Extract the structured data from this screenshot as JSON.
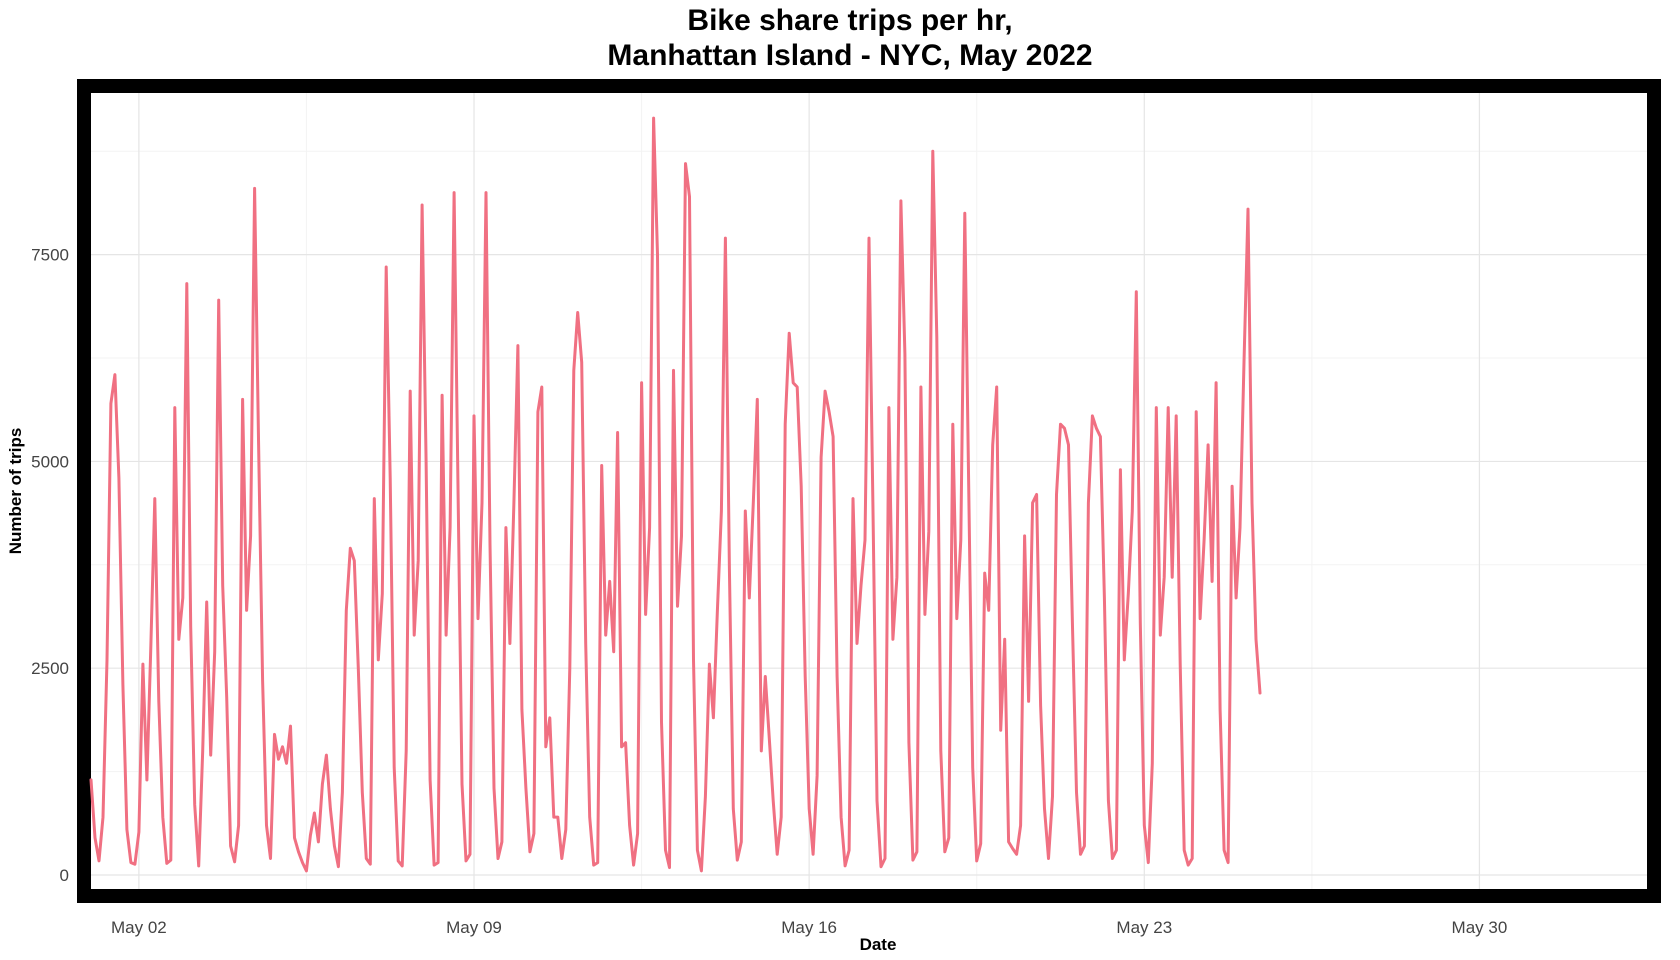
{
  "chart_data": {
    "type": "line",
    "title_line1": "Bike share trips per hr,",
    "title_line2": "Manhattan Island - NYC, May 2022",
    "xlabel": "Date",
    "ylabel": "Number of trips",
    "x_start": "2022-05-01",
    "x_step_hours": 2,
    "xlim": [
      "2022-05-01T00:00",
      "2022-06-02T12:00"
    ],
    "x_ticks": [
      {
        "date": "2022-05-02",
        "label": "May 02"
      },
      {
        "date": "2022-05-09",
        "label": "May 09"
      },
      {
        "date": "2022-05-16",
        "label": "May 16"
      },
      {
        "date": "2022-05-23",
        "label": "May 23"
      },
      {
        "date": "2022-05-30",
        "label": "May 30"
      }
    ],
    "ylim": [
      0,
      9200
    ],
    "y_ticks": [
      0,
      2500,
      5000,
      7500
    ],
    "y_tick_labels": [
      "0",
      "2500",
      "5000",
      "7500"
    ],
    "grid": true,
    "line_color": "#f07082",
    "frame_color": "#000000",
    "series": [
      {
        "values": [
          1150,
          450,
          170,
          700,
          2600,
          5700,
          6050,
          4800,
          2300,
          550,
          150,
          130,
          520,
          2550,
          1150,
          2750,
          4550,
          2100,
          700,
          140,
          180,
          5650,
          2850,
          3350,
          7150,
          3000,
          850,
          110,
          1500,
          3300,
          1450,
          2700,
          6950,
          3500,
          2150,
          350,
          160,
          600,
          5750,
          3200,
          4100,
          8300,
          5200,
          2350,
          600,
          200,
          1700,
          1400,
          1550,
          1350,
          1800,
          450,
          280,
          150,
          50,
          480,
          750,
          400,
          1100,
          1450,
          800,
          350,
          100,
          1000,
          3200,
          3950,
          3800,
          2500,
          1000,
          200,
          130,
          4550,
          2600,
          3400,
          7350,
          4800,
          1300,
          170,
          110,
          1500,
          5850,
          2900,
          3800,
          8100,
          5000,
          1150,
          120,
          150,
          5800,
          2900,
          4200,
          8250,
          4600,
          1100,
          170,
          250,
          5550,
          3100,
          4500,
          8250,
          4000,
          1050,
          200,
          400,
          4200,
          2800,
          4500,
          6400,
          2000,
          1050,
          280,
          500,
          5600,
          5900,
          1550,
          1900,
          700,
          700,
          200,
          550,
          2500,
          6100,
          6800,
          6200,
          2800,
          700,
          120,
          150,
          4950,
          2900,
          3550,
          2700,
          5350,
          1550,
          1600,
          600,
          120,
          500,
          5950,
          3150,
          4200,
          9150,
          7500,
          1850,
          300,
          90,
          6100,
          3250,
          4100,
          8600,
          8200,
          2600,
          300,
          50,
          950,
          2550,
          1900,
          3200,
          4400,
          7700,
          3700,
          800,
          180,
          400,
          4400,
          3350,
          4500,
          5750,
          1500,
          2400,
          1650,
          900,
          250,
          700,
          5450,
          6550,
          5950,
          5900,
          4700,
          2400,
          800,
          250,
          1200,
          5050,
          5850,
          5600,
          5300,
          2400,
          700,
          110,
          300,
          4550,
          2800,
          3500,
          4050,
          7700,
          4400,
          900,
          100,
          200,
          5650,
          2850,
          3600,
          8150,
          6300,
          1600,
          180,
          280,
          5900,
          3150,
          4150,
          8750,
          6500,
          1500,
          280,
          450,
          5450,
          3100,
          4050,
          8000,
          4700,
          1300,
          170,
          380,
          3650,
          3200,
          5200,
          5900,
          1750,
          2850,
          400,
          320,
          250,
          600,
          4100,
          2100,
          4500,
          4600,
          2050,
          800,
          200,
          950,
          4600,
          5450,
          5400,
          5200,
          3000,
          1000,
          250,
          350,
          4500,
          5550,
          5400,
          5300,
          3350,
          900,
          200,
          300,
          4900,
          2600,
          3400,
          4400,
          7050,
          3050,
          600,
          150,
          1350,
          5650,
          2900,
          3600,
          5650,
          3600,
          5550,
          2550,
          300,
          120,
          200,
          5600,
          3100,
          4050,
          5200,
          3550,
          5950,
          2000,
          300,
          150,
          4700,
          3350,
          4200,
          6200,
          8050,
          4500,
          2850,
          2200
        ]
      }
    ]
  }
}
